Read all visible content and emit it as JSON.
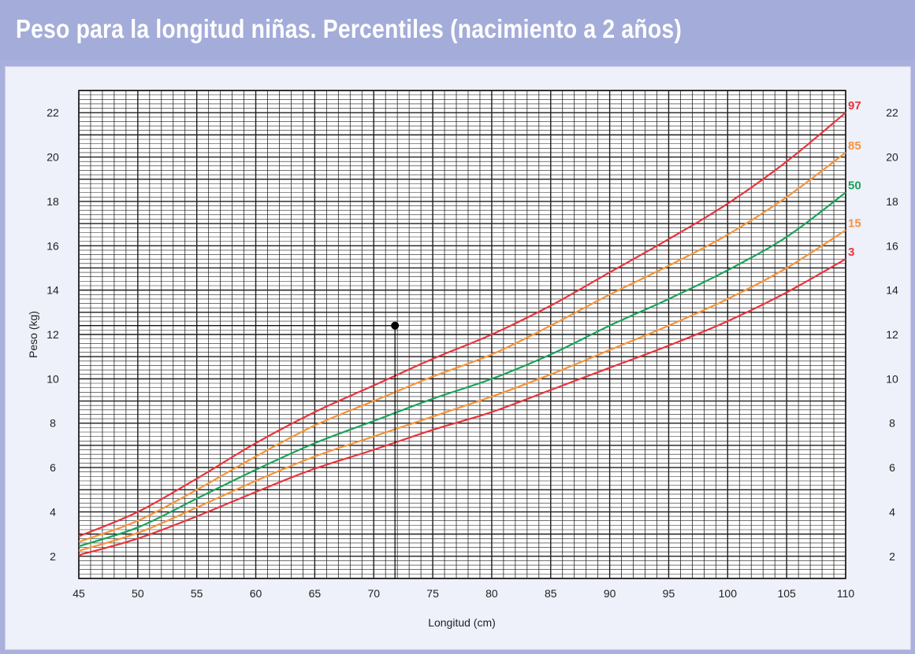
{
  "title": "Peso para la longitud niñas. Percentiles (nacimiento a 2 años)",
  "chart_data": {
    "type": "line",
    "xlabel": "Longitud (cm)",
    "ylabel": "Peso (kg)",
    "xlim": [
      45,
      110
    ],
    "ylim": [
      1,
      23
    ],
    "x_ticks": [
      "45",
      "50",
      "55",
      "60",
      "65",
      "70",
      "75",
      "80",
      "85",
      "90",
      "95",
      "100",
      "105",
      "110"
    ],
    "y_ticks": [
      "2",
      "4",
      "6",
      "8",
      "10",
      "12",
      "14",
      "16",
      "18",
      "20",
      "22"
    ],
    "grid": true,
    "x": [
      45,
      50,
      55,
      60,
      65,
      70,
      75,
      80,
      85,
      90,
      95,
      100,
      105,
      110
    ],
    "series": [
      {
        "name": "97",
        "color": "#e8343c",
        "values": [
          2.9,
          4.0,
          5.5,
          7.1,
          8.5,
          9.7,
          10.9,
          12.0,
          13.3,
          14.8,
          16.3,
          17.9,
          19.8,
          22.0
        ]
      },
      {
        "name": "85",
        "color": "#f5943a",
        "values": [
          2.65,
          3.6,
          5.0,
          6.5,
          7.9,
          9.0,
          10.1,
          11.1,
          12.4,
          13.8,
          15.1,
          16.5,
          18.2,
          20.2
        ]
      },
      {
        "name": "50",
        "color": "#1aa35a",
        "values": [
          2.45,
          3.3,
          4.6,
          5.9,
          7.1,
          8.1,
          9.1,
          10.0,
          11.1,
          12.4,
          13.6,
          14.9,
          16.4,
          18.4
        ]
      },
      {
        "name": "15",
        "color": "#f5943a",
        "values": [
          2.25,
          3.05,
          4.2,
          5.4,
          6.5,
          7.4,
          8.3,
          9.2,
          10.2,
          11.3,
          12.4,
          13.6,
          15.0,
          16.7
        ]
      },
      {
        "name": "3",
        "color": "#e8343c",
        "values": [
          2.05,
          2.8,
          3.8,
          4.9,
          5.95,
          6.8,
          7.7,
          8.5,
          9.5,
          10.5,
          11.5,
          12.6,
          13.9,
          15.4
        ]
      }
    ],
    "annotations": [
      {
        "type": "point",
        "x": 71.8,
        "y": 12.4
      }
    ]
  }
}
